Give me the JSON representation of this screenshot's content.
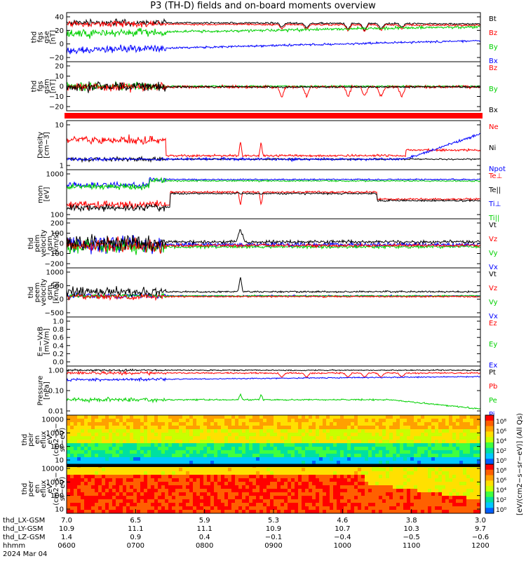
{
  "title": "P3 (TH-D) fields and on-board moments overview",
  "colors": {
    "red": "#ff0000",
    "green": "#00d000",
    "blue": "#0000ff",
    "black": "#000000"
  },
  "chart_data": [
    {
      "type": "line",
      "ylabel": [
        "thd",
        "fgs",
        "gse",
        "[nT]"
      ],
      "ticks": [
        "40",
        "20",
        "0",
        "−20"
      ],
      "ylim": [
        -20,
        50
      ],
      "legend": [
        {
          "text": "Bt",
          "color": "#000000"
        },
        {
          "text": "Bz",
          "color": "#ff0000"
        },
        {
          "text": "By",
          "color": "#00d000"
        },
        {
          "text": "Bx",
          "color": "#0000ff"
        }
      ],
      "series": [
        {
          "name": "Bt",
          "base": 35
        },
        {
          "name": "Bz",
          "base": 33
        },
        {
          "name": "By",
          "base": 15
        },
        {
          "name": "Bx",
          "base": -5
        }
      ]
    },
    {
      "type": "line",
      "ylabel": [
        "thd",
        "fgs",
        "gsm",
        "[nT]"
      ],
      "ticks": [
        "20",
        "10",
        "0",
        "−10",
        "−20"
      ],
      "ylim": [
        -25,
        22
      ],
      "legend": [
        {
          "text": "Bz",
          "color": "#ff0000"
        },
        {
          "text": "By",
          "color": "#00d000"
        },
        {
          "text": "Bx",
          "color": "#000000"
        }
      ],
      "series": [
        {
          "name": "Bx",
          "base": 0
        },
        {
          "name": "By",
          "base": 2
        },
        {
          "name": "Bz",
          "base": -3
        }
      ]
    },
    {
      "type": "line",
      "ylabel": [
        "Density",
        "[cm−3]"
      ],
      "ticks": [
        "10",
        "1"
      ],
      "log": true,
      "legend": [
        {
          "text": "Ne",
          "color": "#ff0000"
        },
        {
          "text": "Ni",
          "color": "#000000"
        },
        {
          "text": "Npot",
          "color": "#0000ff"
        }
      ],
      "series": [
        {
          "name": "Ne",
          "base": 2
        },
        {
          "name": "Ni",
          "base": 1
        },
        {
          "name": "Npot",
          "base": 1
        }
      ]
    },
    {
      "type": "line",
      "ylabel": [
        "mom",
        "[eV]"
      ],
      "ticks": [
        "1000",
        "100"
      ],
      "log": true,
      "legend": [
        {
          "text": "Te⊥",
          "color": "#ff0000"
        },
        {
          "text": "Te||",
          "color": "#000000"
        },
        {
          "text": "Ti⊥",
          "color": "#0000ff"
        },
        {
          "text": "Ti||",
          "color": "#00d000"
        }
      ],
      "series": [
        {
          "name": "Ti",
          "base": 2000
        },
        {
          "name": "Te",
          "base": 200
        }
      ]
    },
    {
      "type": "line",
      "ylabel": [
        "thd",
        "peim",
        "velocity",
        "gsm",
        "[km/s]"
      ],
      "ticks": [
        "200",
        "100",
        "0",
        "−100",
        "−200"
      ],
      "ylim": [
        -220,
        260
      ],
      "legend": [
        {
          "text": "Vt",
          "color": "#000000"
        },
        {
          "text": "Vz",
          "color": "#ff0000"
        },
        {
          "text": "Vy",
          "color": "#00d000"
        },
        {
          "text": "Vx",
          "color": "#0000ff"
        }
      ],
      "series": [
        {
          "name": "Vt",
          "base": 0
        },
        {
          "name": "Vz",
          "base": 0
        },
        {
          "name": "Vy",
          "base": 0
        },
        {
          "name": "Vx",
          "base": 0
        }
      ]
    },
    {
      "type": "line",
      "ylabel": [
        "thd",
        "peem",
        "velocity",
        "gsm",
        "[km/s]"
      ],
      "ticks": [
        "1000",
        "500",
        "0",
        "−500"
      ],
      "ylim": [
        -700,
        1400
      ],
      "legend": [
        {
          "text": "Vt",
          "color": "#000000"
        },
        {
          "text": "Vz",
          "color": "#ff0000"
        },
        {
          "text": "Vy",
          "color": "#00d000"
        },
        {
          "text": "Vx",
          "color": "#0000ff"
        }
      ],
      "series": [
        {
          "name": "Vt",
          "base": 0
        },
        {
          "name": "Vz",
          "base": 0
        },
        {
          "name": "Vy",
          "base": 0
        },
        {
          "name": "Vx",
          "base": 0
        }
      ]
    },
    {
      "type": "line",
      "ylabel": [
        "E=−VxB",
        "[mV/m]"
      ],
      "ticks": [
        "1.0",
        "0.8",
        "0.6",
        "0.4",
        "0.2",
        "0.0"
      ],
      "ylim": [
        0,
        1
      ],
      "legend": [
        {
          "text": "Ez",
          "color": "#ff0000"
        },
        {
          "text": "Ey",
          "color": "#00d000"
        },
        {
          "text": "Ex",
          "color": "#0000ff"
        }
      ],
      "series": []
    },
    {
      "type": "line",
      "ylabel": [
        "Pressure",
        "[nPa]"
      ],
      "ticks": [
        "1.00",
        "0.10",
        "0.01"
      ],
      "log": true,
      "legend": [
        {
          "text": "Pt",
          "color": "#000000"
        },
        {
          "text": "Pb",
          "color": "#ff0000"
        },
        {
          "text": "Pe",
          "color": "#00d000"
        },
        {
          "text": "Pi",
          "color": "#0000ff"
        }
      ],
      "series": [
        {
          "name": "Pt",
          "base": 0.9
        },
        {
          "name": "Pb",
          "base": 0.6
        },
        {
          "name": "Pi",
          "base": 0.25
        },
        {
          "name": "Pe",
          "base": 0.04
        }
      ]
    },
    {
      "type": "heatmap",
      "ylabel": [
        "thd",
        "peir",
        "en",
        "eflux",
        "eV",
        "(cm2−s−",
        "sr−eV)"
      ],
      "ticks": [
        "10000",
        "1000",
        "100",
        "10"
      ],
      "log": true
    },
    {
      "type": "heatmap",
      "ylabel": [
        "thd",
        "peer",
        "en",
        "eflux",
        "eV",
        "(cm2−s−",
        "sr−eV)"
      ],
      "ticks": [
        "10000",
        "1000",
        "100",
        "10"
      ],
      "log": true
    }
  ],
  "colorbar": {
    "label": "[eV/(cm2−s−sr−eV)] (All Qs)",
    "ticks_top": [
      "10⁸",
      "10⁶",
      "10⁴",
      "10²",
      "10⁰"
    ],
    "ticks_bot": [
      "10⁸",
      "10⁶",
      "10⁴",
      "10²",
      "10⁰"
    ]
  },
  "xaxis": {
    "row_labels": [
      "thd_LX-GSM",
      "thd_LY-GSM",
      "thd_LZ-GSM",
      "hhmm",
      "2024 Mar 04"
    ],
    "columns": [
      {
        "lx": "7.0",
        "ly": "10.9",
        "lz": "1.4",
        "hhmm": "0600"
      },
      {
        "lx": "6.5",
        "ly": "11.1",
        "lz": "0.9",
        "hhmm": "0700"
      },
      {
        "lx": "5.9",
        "ly": "11.1",
        "lz": "0.4",
        "hhmm": "0800"
      },
      {
        "lx": "5.3",
        "ly": "10.9",
        "lz": "−0.1",
        "hhmm": "0900"
      },
      {
        "lx": "4.6",
        "ly": "10.7",
        "lz": "−0.4",
        "hhmm": "1000"
      },
      {
        "lx": "3.8",
        "ly": "10.3",
        "lz": "−0.5",
        "hhmm": "1100"
      },
      {
        "lx": "3.0",
        "ly": "9.7",
        "lz": "−0.6",
        "hhmm": "1200"
      }
    ]
  }
}
